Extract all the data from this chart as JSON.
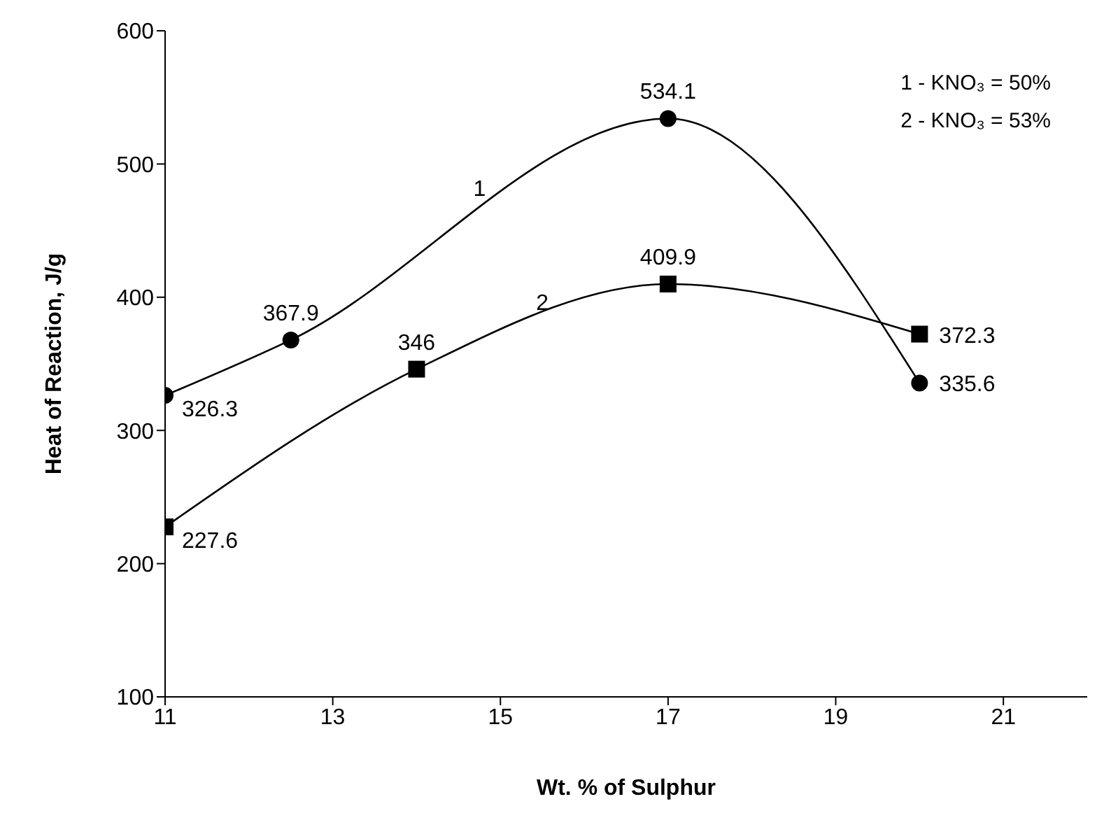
{
  "chart_data": {
    "type": "line",
    "xlabel": "Wt. % of Sulphur",
    "ylabel": "Heat of Reaction, J/g",
    "xlim": [
      11,
      22
    ],
    "xticks": [
      11,
      13,
      15,
      17,
      19,
      21
    ],
    "ylim": [
      100,
      600
    ],
    "yticks": [
      100,
      200,
      300,
      400,
      500,
      600
    ],
    "grid": false,
    "data_labels": true,
    "annotations": [
      "1 - KNO₃ = 50%",
      "2 - KNO₃ = 53%"
    ],
    "series": [
      {
        "name": "1",
        "color": "#000000",
        "marker": "circle",
        "x": [
          11,
          12.5,
          17,
          20
        ],
        "values": [
          326.3,
          367.9,
          534.1,
          335.6
        ]
      },
      {
        "name": "2",
        "color": "#000000",
        "marker": "square",
        "x": [
          11,
          14,
          17,
          20
        ],
        "values": [
          227.6,
          346,
          409.9,
          372.3
        ]
      }
    ]
  }
}
